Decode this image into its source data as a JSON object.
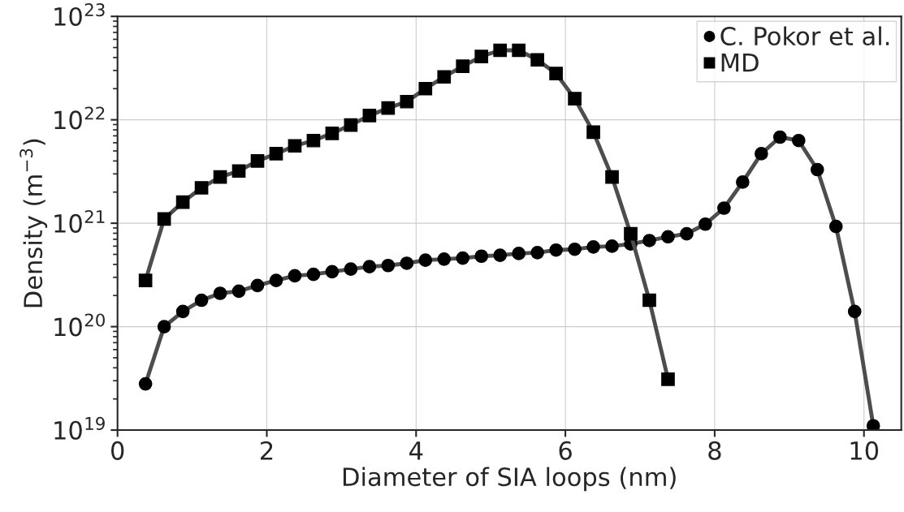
{
  "chart_data": {
    "type": "line",
    "xlabel": "Diameter of SIA loops (nm)",
    "ylabel": "Density (m$^{−3}$)",
    "log": "y",
    "grid": true,
    "legend": "top right",
    "xlim": [
      0,
      10.5
    ],
    "xticks": [
      0,
      2,
      4,
      6,
      8,
      10
    ],
    "ylim": [
      1e+19,
      1e+23
    ],
    "yticks": [
      {
        "value": 1e+19,
        "label": "10$^{19}$"
      },
      {
        "value": 1e+20,
        "label": "10$^{20}$"
      },
      {
        "value": 1e+21,
        "label": "10$^{21}$"
      },
      {
        "value": 1e+22,
        "label": "10$^{22}$"
      },
      {
        "value": 1e+23,
        "label": "10$^{23}$"
      }
    ],
    "series": [
      {
        "name": "C. Pokor et al.",
        "color": "#000000",
        "marker": "circle",
        "x": [
          0.375,
          0.625,
          0.875,
          1.125,
          1.375,
          1.625,
          1.875,
          2.125,
          2.375,
          2.625,
          2.875,
          3.125,
          3.375,
          3.625,
          3.875,
          4.125,
          4.375,
          4.625,
          4.875,
          5.125,
          5.375,
          5.625,
          5.875,
          6.125,
          6.375,
          6.625,
          6.875,
          7.125,
          7.375,
          7.625,
          7.875,
          8.125,
          8.375,
          8.625,
          8.875,
          9.125,
          9.375,
          9.625,
          9.875,
          10.125
        ],
        "values": [
          2.8e+19,
          1e+20,
          1.4e+20,
          1.8e+20,
          2.1e+20,
          2.2e+20,
          2.5e+20,
          2.8e+20,
          3.1e+20,
          3.2e+20,
          3.4e+20,
          3.6e+20,
          3.8e+20,
          3.9e+20,
          4.1e+20,
          4.4e+20,
          4.5e+20,
          4.6e+20,
          4.8e+20,
          4.9e+20,
          5.1e+20,
          5.2e+20,
          5.5e+20,
          5.6e+20,
          5.9e+20,
          6e+20,
          6.3e+20,
          6.8e+20,
          7.4e+20,
          7.9e+20,
          9.8e+20,
          1.4e+21,
          2.5e+21,
          4.7e+21,
          6.8e+21,
          6.3e+21,
          3.3e+21,
          9.3e+20,
          1.4e+20,
          1.1e+19
        ]
      },
      {
        "name": "MD",
        "color": "#000000",
        "marker": "square",
        "x": [
          0.375,
          0.625,
          0.875,
          1.125,
          1.375,
          1.625,
          1.875,
          2.125,
          2.375,
          2.625,
          2.875,
          3.125,
          3.375,
          3.625,
          3.875,
          4.125,
          4.375,
          4.625,
          4.875,
          5.125,
          5.375,
          5.625,
          5.875,
          6.125,
          6.375,
          6.625,
          6.875,
          7.125,
          7.375
        ],
        "values": [
          2.8e+20,
          1.1e+21,
          1.6e+21,
          2.2e+21,
          2.8e+21,
          3.2e+21,
          4e+21,
          4.7e+21,
          5.6e+21,
          6.3e+21,
          7.4e+21,
          8.9e+21,
          1.1e+22,
          1.3e+22,
          1.5e+22,
          2e+22,
          2.6e+22,
          3.3e+22,
          4.1e+22,
          4.7e+22,
          4.7e+22,
          3.8e+22,
          2.8e+22,
          1.6e+22,
          7.6e+21,
          2.8e+21,
          7.9e+20,
          1.8e+20,
          3.1e+19
        ]
      }
    ]
  }
}
